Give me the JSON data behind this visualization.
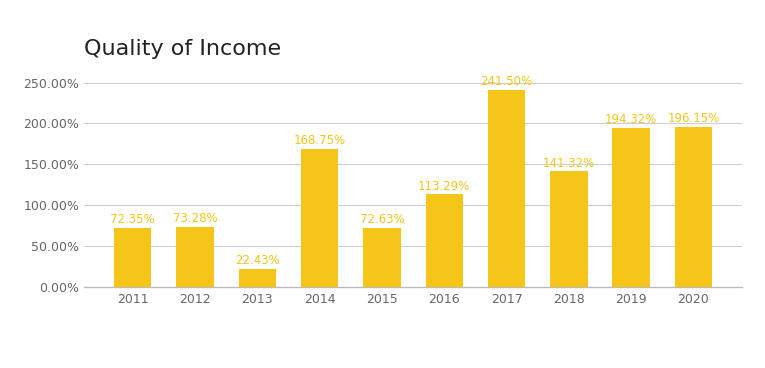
{
  "title": "Quality of Income",
  "years": [
    2011,
    2012,
    2013,
    2014,
    2015,
    2016,
    2017,
    2018,
    2019,
    2020
  ],
  "values": [
    72.35,
    73.28,
    22.43,
    168.75,
    72.63,
    113.29,
    241.5,
    141.32,
    194.32,
    196.15
  ],
  "bar_color": "#F5C518",
  "label_color": "#F5C518",
  "background_color": "#ffffff",
  "legend_label": "Quality of Income",
  "ylim": [
    0,
    270
  ],
  "yticks": [
    0,
    50,
    100,
    150,
    200,
    250
  ],
  "ytick_labels": [
    "0.00%",
    "50.00%",
    "100.00%",
    "150.00%",
    "200.00%",
    "250.00%"
  ],
  "title_fontsize": 16,
  "tick_fontsize": 9,
  "label_fontsize": 8.5,
  "grid_color": "#cccccc",
  "axis_color": "#bbbbbb",
  "text_color": "#666666",
  "title_color": "#222222"
}
